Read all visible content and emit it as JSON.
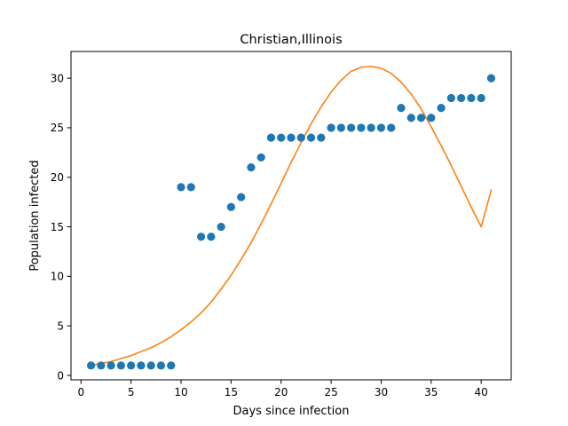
{
  "chart_data": {
    "type": "scatter",
    "title": "Christian,Illinois",
    "xlabel": "Days since infection",
    "ylabel": "Population infected",
    "xlim": [
      -1.0,
      43.0
    ],
    "ylim": [
      -0.45,
      32.7
    ],
    "xticks": [
      0,
      5,
      10,
      15,
      20,
      25,
      30,
      35,
      40
    ],
    "yticks": [
      0,
      5,
      10,
      15,
      20,
      25,
      30
    ],
    "grid": false,
    "series": [
      {
        "kind": "scatter",
        "color": "#1f77b4",
        "x": [
          1,
          2,
          3,
          4,
          5,
          6,
          7,
          8,
          9,
          10,
          11,
          12,
          13,
          14,
          15,
          16,
          17,
          18,
          19,
          20,
          21,
          22,
          23,
          24,
          25,
          26,
          27,
          28,
          29,
          30,
          31,
          32,
          33,
          34,
          35,
          36,
          37,
          38,
          39,
          40,
          41
        ],
        "y": [
          1,
          1,
          1,
          1,
          1,
          1,
          1,
          1,
          1,
          19,
          19,
          14,
          14,
          15,
          17,
          18,
          21,
          22,
          24,
          24,
          24,
          24,
          24,
          24,
          25,
          25,
          25,
          25,
          25,
          25,
          25,
          27,
          26,
          26,
          26,
          27,
          28,
          28,
          28,
          28,
          30
        ]
      },
      {
        "kind": "line",
        "color": "#ff7f0e",
        "x": [
          1,
          2,
          3,
          4,
          5,
          6,
          7,
          8,
          9,
          10,
          11,
          12,
          13,
          14,
          15,
          16,
          17,
          18,
          19,
          20,
          21,
          22,
          23,
          24,
          25,
          26,
          27,
          28,
          29,
          30,
          31,
          32,
          33,
          34,
          35,
          36,
          37,
          38,
          39,
          40,
          41
        ],
        "y": [
          1.0,
          1.2,
          1.4,
          1.7,
          2.0,
          2.4,
          2.8,
          3.3,
          3.9,
          4.6,
          5.4,
          6.3,
          7.4,
          8.7,
          10.1,
          11.7,
          13.4,
          15.3,
          17.3,
          19.4,
          21.5,
          23.5,
          25.4,
          27.1,
          28.6,
          29.8,
          30.7,
          31.1,
          31.2,
          31.0,
          30.5,
          29.6,
          28.4,
          26.9,
          25.1,
          23.2,
          21.2,
          19.1,
          17.0,
          15.0,
          18.7
        ]
      }
    ]
  }
}
